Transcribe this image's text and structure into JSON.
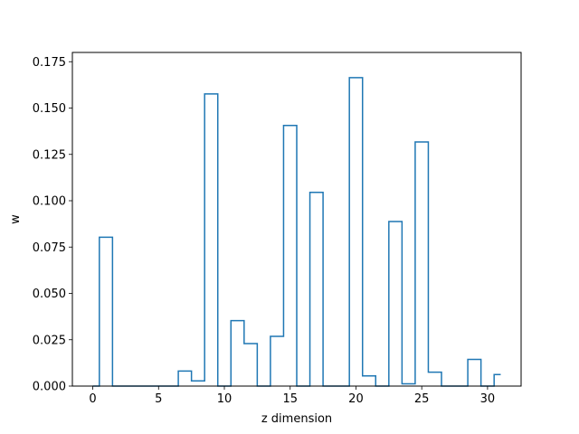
{
  "chart_data": {
    "type": "line",
    "drawstyle": "steps-mid",
    "title": "",
    "xlabel": "z dimension",
    "ylabel": "w",
    "xlim": [
      -1.55,
      32.55
    ],
    "ylim": [
      0,
      0.18
    ],
    "x_ticks": [
      0,
      5,
      10,
      15,
      20,
      25,
      30
    ],
    "x_tick_labels": [
      "0",
      "5",
      "10",
      "15",
      "20",
      "25",
      "30"
    ],
    "y_ticks": [
      0.0,
      0.025,
      0.05,
      0.075,
      0.1,
      0.125,
      0.15,
      0.175
    ],
    "y_tick_labels": [
      "0.000",
      "0.025",
      "0.050",
      "0.075",
      "0.100",
      "0.125",
      "0.150",
      "0.175"
    ],
    "grid": false,
    "line_color": "#1f77b4",
    "series": [
      {
        "x": [
          0,
          1,
          2,
          3,
          4,
          5,
          6,
          7,
          8,
          9,
          10,
          11,
          12,
          13,
          14,
          15,
          16,
          17,
          18,
          19,
          20,
          21,
          22,
          23,
          24,
          25,
          26,
          27,
          28,
          29,
          30,
          31
        ],
        "values": [
          0.0,
          0.0803,
          0.0,
          0.0,
          0.0,
          0.0,
          0.0,
          0.0081,
          0.0028,
          0.1576,
          0.0,
          0.0353,
          0.0229,
          0.0,
          0.0268,
          0.1406,
          0.0,
          0.1045,
          0.0,
          0.0,
          0.1664,
          0.0055,
          0.0,
          0.0888,
          0.0012,
          0.1317,
          0.0075,
          0.0,
          0.0,
          0.0144,
          0.0,
          0.0062
        ]
      }
    ]
  }
}
